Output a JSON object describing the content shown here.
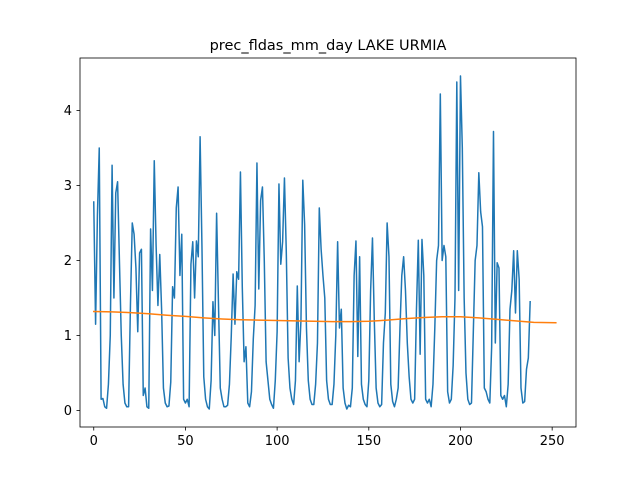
{
  "chart_data": {
    "type": "line",
    "title": "prec_fldas_mm_day LAKE URMIA",
    "xlabel": "",
    "ylabel": "",
    "xlim": [
      -7.5,
      263
    ],
    "ylim": [
      -0.22,
      4.7
    ],
    "x_ticks": [
      0,
      50,
      100,
      150,
      200,
      250
    ],
    "y_ticks": [
      0,
      1,
      2,
      3,
      4
    ],
    "grid": false,
    "series": [
      {
        "color": "#1f77b4",
        "x_start": 0,
        "x_step": 1,
        "values": [
          2.78,
          1.15,
          2.6,
          3.5,
          0.15,
          0.16,
          0.05,
          0.03,
          0.35,
          1.0,
          3.27,
          1.5,
          2.9,
          3.05,
          2.0,
          1.0,
          0.35,
          0.1,
          0.05,
          0.05,
          1.4,
          2.5,
          2.35,
          1.9,
          1.05,
          2.1,
          2.15,
          0.2,
          0.3,
          0.05,
          0.03,
          2.42,
          1.6,
          3.33,
          2.2,
          1.4,
          2.08,
          1.35,
          0.3,
          0.1,
          0.05,
          0.06,
          0.38,
          1.65,
          1.5,
          2.7,
          2.98,
          1.8,
          2.35,
          0.15,
          0.1,
          0.15,
          0.05,
          1.95,
          2.25,
          1.5,
          2.26,
          2.05,
          3.65,
          2.2,
          0.45,
          0.15,
          0.05,
          0.02,
          0.4,
          1.45,
          1.0,
          2.63,
          1.45,
          0.3,
          0.15,
          0.05,
          0.05,
          0.07,
          0.35,
          1.0,
          1.82,
          1.15,
          1.85,
          1.75,
          3.18,
          1.65,
          0.65,
          0.85,
          0.1,
          0.05,
          0.25,
          0.95,
          1.4,
          3.3,
          1.62,
          2.8,
          2.98,
          2.0,
          0.65,
          0.4,
          0.15,
          0.08,
          0.03,
          0.4,
          1.05,
          3.02,
          1.95,
          2.25,
          3.1,
          2.12,
          0.7,
          0.3,
          0.15,
          0.08,
          0.4,
          1.66,
          0.65,
          1.2,
          3.07,
          2.48,
          1.1,
          0.4,
          0.15,
          0.08,
          0.08,
          0.35,
          0.9,
          2.7,
          2.15,
          1.8,
          1.5,
          0.4,
          0.15,
          0.08,
          0.08,
          0.35,
          1.0,
          2.25,
          1.1,
          1.35,
          0.3,
          0.1,
          0.02,
          0.07,
          0.05,
          0.3,
          1.8,
          2.26,
          0.72,
          2.05,
          0.35,
          0.15,
          0.08,
          0.05,
          0.4,
          1.6,
          2.3,
          1.2,
          0.3,
          0.1,
          0.05,
          0.08,
          0.9,
          1.3,
          2.5,
          2.05,
          0.35,
          0.12,
          0.05,
          0.15,
          0.3,
          1.1,
          1.8,
          2.05,
          1.6,
          0.9,
          0.45,
          0.15,
          0.1,
          0.15,
          1.35,
          2.27,
          0.75,
          2.28,
          1.8,
          0.15,
          0.1,
          0.15,
          0.05,
          0.35,
          1.1,
          2.0,
          2.2,
          4.22,
          2.0,
          2.2,
          2.05,
          0.25,
          0.1,
          0.15,
          0.6,
          1.5,
          4.38,
          1.6,
          4.46,
          3.5,
          1.5,
          0.5,
          0.15,
          0.08,
          0.1,
          1.05,
          2.0,
          2.2,
          3.17,
          2.65,
          2.45,
          0.3,
          0.25,
          0.15,
          0.1,
          0.85,
          3.72,
          0.9,
          1.97,
          1.9,
          0.2,
          0.15,
          0.2,
          0.05,
          0.35,
          1.35,
          1.6,
          2.13,
          1.3,
          2.13,
          1.75,
          0.3,
          0.1,
          0.12,
          0.55,
          0.7,
          1.45
        ]
      },
      {
        "color": "#ff7f0e",
        "points": [
          [
            0,
            1.32
          ],
          [
            10,
            1.315
          ],
          [
            20,
            1.305
          ],
          [
            30,
            1.29
          ],
          [
            40,
            1.27
          ],
          [
            50,
            1.255
          ],
          [
            60,
            1.235
          ],
          [
            70,
            1.22
          ],
          [
            80,
            1.21
          ],
          [
            90,
            1.205
          ],
          [
            100,
            1.2
          ],
          [
            110,
            1.195
          ],
          [
            120,
            1.19
          ],
          [
            130,
            1.185
          ],
          [
            140,
            1.185
          ],
          [
            150,
            1.19
          ],
          [
            160,
            1.205
          ],
          [
            170,
            1.225
          ],
          [
            180,
            1.24
          ],
          [
            190,
            1.25
          ],
          [
            200,
            1.25
          ],
          [
            210,
            1.235
          ],
          [
            220,
            1.215
          ],
          [
            230,
            1.195
          ],
          [
            240,
            1.175
          ],
          [
            252,
            1.17
          ]
        ]
      }
    ]
  }
}
